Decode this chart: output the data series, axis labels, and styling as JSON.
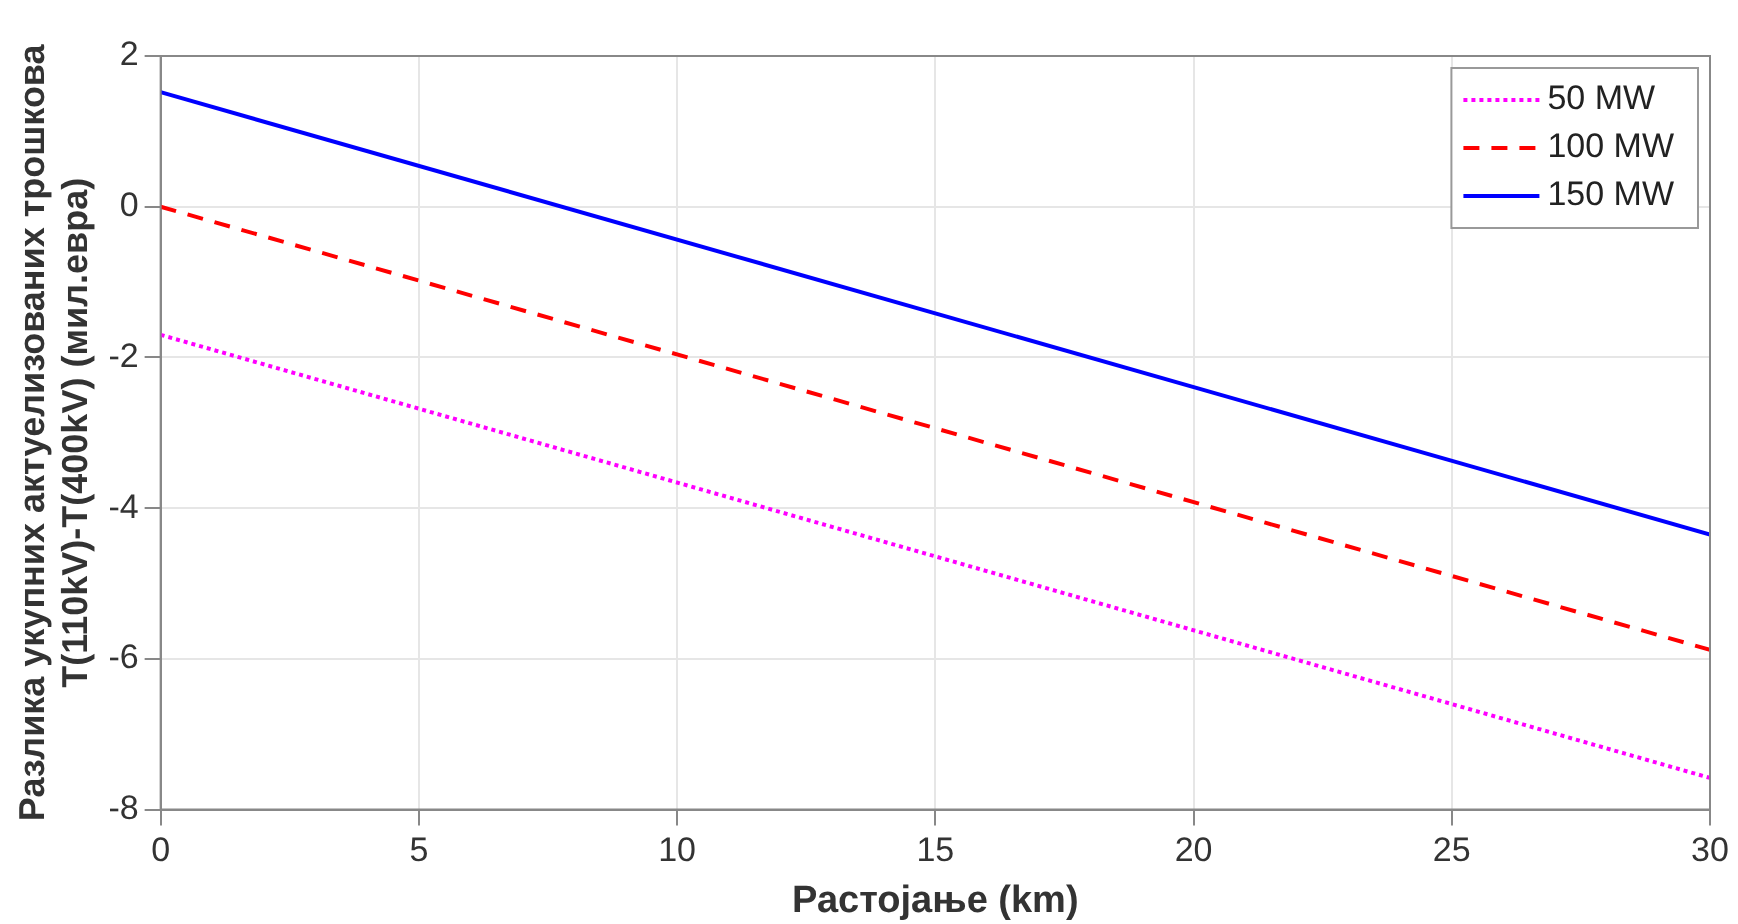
{
  "chart_data": {
    "type": "line",
    "xlabel": "Растојање (km)",
    "ylabel": "Разлика укупних актуелизованих трошкова\nT(110kV)-T(400kV) (мил.евра)",
    "x": [
      0,
      30
    ],
    "series": [
      {
        "name": "50 MW",
        "color": "#ff00ff",
        "values": [
          -1.7,
          -7.58
        ],
        "line_style": "dotted"
      },
      {
        "name": "100 MW",
        "color": "#ff0000",
        "values": [
          0,
          -5.88
        ],
        "line_style": "dashed"
      },
      {
        "name": "150 MW",
        "color": "#0000ff",
        "values": [
          1.52,
          -4.35
        ],
        "line_style": "solid"
      }
    ],
    "xlim": [
      0,
      30
    ],
    "xticks": [
      0,
      5,
      10,
      15,
      20,
      25,
      30
    ],
    "ylim": [
      -8,
      2
    ],
    "yticks": [
      -8,
      -6,
      -4,
      -2,
      0,
      2
    ],
    "grid": true,
    "legend": "top right",
    "marker": "none"
  }
}
